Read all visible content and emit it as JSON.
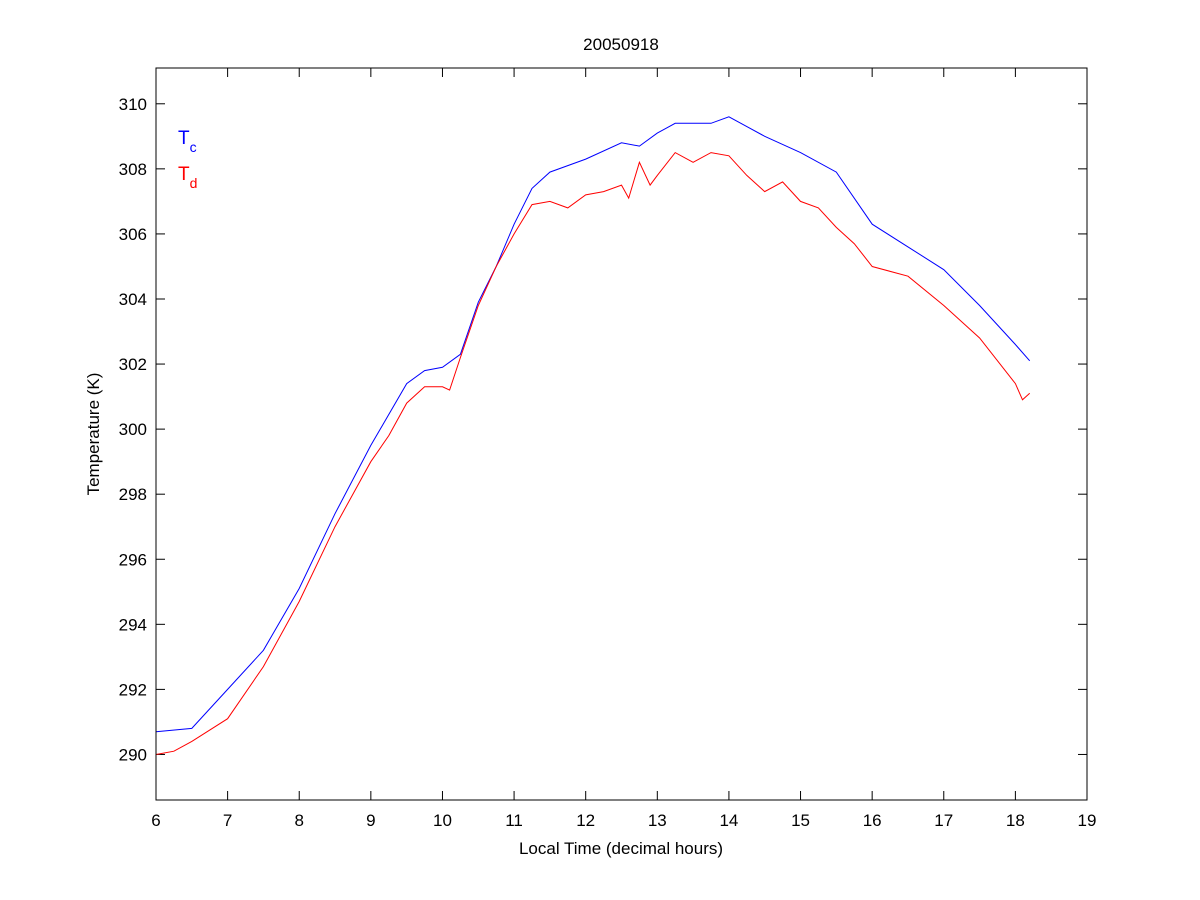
{
  "chart_data": {
    "type": "line",
    "title": "20050918",
    "xlabel": "Local Time (decimal hours)",
    "ylabel": "Temperature (K)",
    "xlim": [
      6,
      19
    ],
    "ylim": [
      288.6,
      311.1
    ],
    "xticks": [
      6,
      7,
      8,
      9,
      10,
      11,
      12,
      13,
      14,
      15,
      16,
      17,
      18,
      19
    ],
    "yticks": [
      290,
      292,
      294,
      296,
      298,
      300,
      302,
      304,
      306,
      308,
      310
    ],
    "grid": false,
    "legend_placement": "top-left",
    "series": [
      {
        "name": "Tc",
        "label_main": "T",
        "label_sub": "c",
        "color": "#0000ff",
        "x": [
          6.0,
          6.5,
          7.0,
          7.5,
          8.0,
          8.5,
          9.0,
          9.5,
          9.75,
          10.0,
          10.25,
          10.5,
          10.75,
          11.0,
          11.25,
          11.5,
          12.0,
          12.5,
          12.75,
          13.0,
          13.25,
          13.5,
          13.75,
          14.0,
          14.5,
          15.0,
          15.5,
          16.0,
          16.5,
          17.0,
          17.5,
          18.0,
          18.2
        ],
        "y": [
          290.7,
          290.8,
          292.0,
          293.2,
          295.1,
          297.4,
          299.5,
          301.4,
          301.8,
          301.9,
          302.3,
          303.9,
          305.0,
          306.3,
          307.4,
          307.9,
          308.3,
          308.8,
          308.7,
          309.1,
          309.4,
          309.4,
          309.4,
          309.6,
          309.0,
          308.5,
          307.9,
          306.3,
          305.6,
          304.9,
          303.8,
          302.6,
          302.1
        ]
      },
      {
        "name": "Td",
        "label_main": "T",
        "label_sub": "d",
        "color": "#ff0000",
        "x": [
          6.0,
          6.25,
          6.5,
          7.0,
          7.5,
          8.0,
          8.5,
          9.0,
          9.25,
          9.5,
          9.75,
          10.0,
          10.1,
          10.25,
          10.5,
          10.75,
          11.0,
          11.25,
          11.5,
          11.75,
          12.0,
          12.25,
          12.5,
          12.6,
          12.75,
          12.9,
          13.0,
          13.25,
          13.5,
          13.75,
          14.0,
          14.25,
          14.5,
          14.75,
          15.0,
          15.25,
          15.5,
          15.75,
          16.0,
          16.5,
          17.0,
          17.5,
          18.0,
          18.1,
          18.2
        ],
        "y": [
          290.0,
          290.1,
          290.4,
          291.1,
          292.7,
          294.7,
          297.0,
          299.0,
          299.8,
          300.8,
          301.3,
          301.3,
          301.2,
          302.2,
          303.8,
          305.0,
          306.0,
          306.9,
          307.0,
          306.8,
          307.2,
          307.3,
          307.5,
          307.1,
          308.2,
          307.5,
          307.8,
          308.5,
          308.2,
          308.5,
          308.4,
          307.8,
          307.3,
          307.6,
          307.0,
          306.8,
          306.2,
          305.7,
          305.0,
          304.7,
          303.8,
          302.8,
          301.4,
          300.9,
          301.1
        ]
      }
    ]
  }
}
